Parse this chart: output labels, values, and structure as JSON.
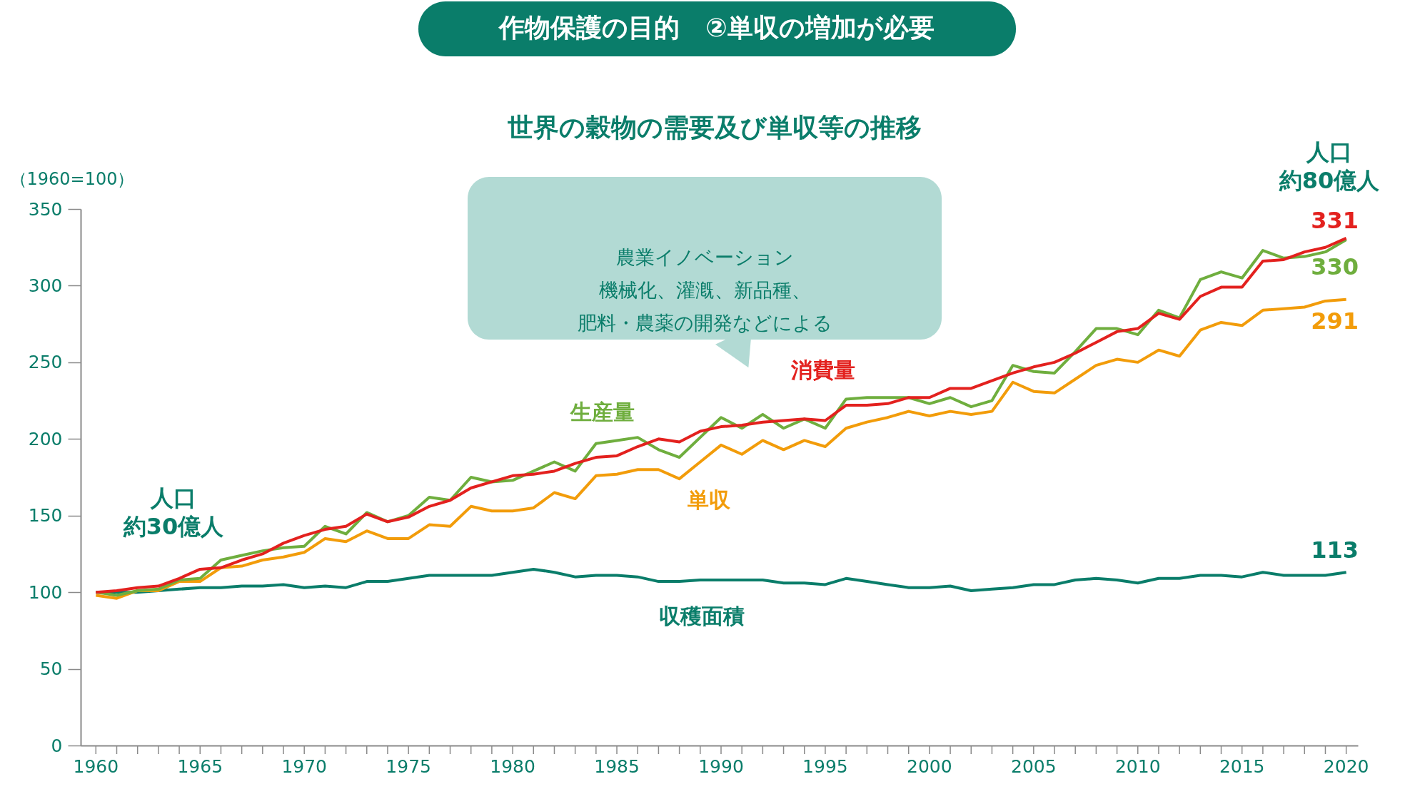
{
  "chart_data": {
    "type": "line",
    "title": "作物保護の目的　②単収の増加が必要",
    "subtitle": "世界の穀物の需要及び単収等の推移",
    "ylabel": "（1960=100）",
    "annotations": [
      "人口約30億人",
      "人口約80億人",
      "農業イノベーション機械化、灌漑、新品種、肥料・農薬の開発などによる"
    ],
    "x": [
      1960,
      1961,
      1962,
      1963,
      1964,
      1965,
      1966,
      1967,
      1968,
      1969,
      1970,
      1971,
      1972,
      1973,
      1974,
      1975,
      1976,
      1977,
      1978,
      1979,
      1980,
      1981,
      1982,
      1983,
      1984,
      1985,
      1986,
      1987,
      1988,
      1989,
      1990,
      1991,
      1992,
      1993,
      1994,
      1995,
      1996,
      1997,
      1998,
      1999,
      2000,
      2001,
      2002,
      2003,
      2004,
      2005,
      2006,
      2007,
      2008,
      2009,
      2010,
      2011,
      2012,
      2013,
      2014,
      2015,
      2016,
      2017,
      2018,
      2019,
      2020
    ],
    "series": [
      {
        "name": "収穫面積",
        "color": "#0a7d6a",
        "values": [
          100,
          100,
          100,
          101,
          102,
          103,
          103,
          104,
          104,
          105,
          103,
          104,
          103,
          107,
          107,
          109,
          111,
          111,
          111,
          111,
          113,
          115,
          113,
          110,
          111,
          111,
          110,
          107,
          107,
          108,
          108,
          108,
          108,
          106,
          106,
          105,
          109,
          107,
          105,
          103,
          103,
          104,
          101,
          102,
          103,
          105,
          105,
          108,
          109,
          108,
          106,
          109,
          109,
          111,
          111,
          110,
          113,
          111,
          111,
          111,
          113
        ],
        "value_labels": [
          null,
          null,
          null,
          null,
          null,
          null,
          null,
          null,
          null,
          null,
          null,
          null,
          null,
          null,
          null,
          null,
          null,
          null,
          null,
          null,
          null,
          null,
          null,
          null,
          null,
          null,
          null,
          null,
          null,
          null,
          null,
          null,
          null,
          null,
          null,
          null,
          null,
          null,
          null,
          null,
          null,
          null,
          null,
          null,
          null,
          null,
          null,
          null,
          null,
          null,
          null,
          null,
          null,
          null,
          null,
          null,
          null,
          null,
          null,
          null,
          "113"
        ]
      },
      {
        "name": "単収",
        "color": "#f29c0a",
        "values": [
          98,
          96,
          101,
          101,
          107,
          107,
          116,
          117,
          121,
          123,
          126,
          135,
          133,
          140,
          135,
          135,
          144,
          143,
          156,
          153,
          153,
          155,
          165,
          161,
          176,
          177,
          180,
          180,
          174,
          185,
          196,
          190,
          199,
          193,
          199,
          195,
          207,
          211,
          214,
          218,
          215,
          218,
          216,
          218,
          237,
          231,
          230,
          239,
          248,
          252,
          250,
          258,
          254,
          271,
          276,
          274,
          284,
          285,
          286,
          290,
          291
        ],
        "value_labels": [
          null,
          null,
          null,
          null,
          null,
          null,
          null,
          null,
          null,
          null,
          null,
          null,
          null,
          null,
          null,
          null,
          null,
          null,
          null,
          null,
          null,
          null,
          null,
          null,
          null,
          null,
          null,
          null,
          null,
          null,
          null,
          null,
          null,
          null,
          null,
          null,
          null,
          null,
          null,
          null,
          null,
          null,
          null,
          null,
          null,
          null,
          null,
          null,
          null,
          null,
          null,
          null,
          null,
          null,
          null,
          null,
          null,
          null,
          null,
          null,
          "291"
        ]
      },
      {
        "name": "生産量",
        "color": "#6fae3e",
        "values": [
          100,
          98,
          101,
          102,
          108,
          109,
          121,
          124,
          127,
          129,
          130,
          143,
          138,
          152,
          146,
          150,
          162,
          160,
          175,
          172,
          173,
          179,
          185,
          179,
          197,
          199,
          201,
          193,
          188,
          201,
          214,
          207,
          216,
          207,
          213,
          207,
          226,
          227,
          227,
          227,
          223,
          227,
          221,
          225,
          248,
          244,
          243,
          257,
          272,
          272,
          268,
          284,
          279,
          304,
          309,
          305,
          323,
          318,
          319,
          322,
          330
        ],
        "value_labels": [
          null,
          null,
          null,
          null,
          null,
          null,
          null,
          null,
          null,
          null,
          null,
          null,
          null,
          null,
          null,
          null,
          null,
          null,
          null,
          null,
          null,
          null,
          null,
          null,
          null,
          null,
          null,
          null,
          null,
          null,
          null,
          null,
          null,
          null,
          null,
          null,
          null,
          null,
          null,
          null,
          null,
          null,
          null,
          null,
          null,
          null,
          null,
          null,
          null,
          null,
          null,
          null,
          null,
          null,
          null,
          null,
          null,
          null,
          null,
          null,
          "330"
        ]
      },
      {
        "name": "消費量",
        "color": "#e3211e",
        "values": [
          100,
          101,
          103,
          104,
          109,
          115,
          116,
          121,
          125,
          132,
          137,
          141,
          143,
          151,
          146,
          149,
          156,
          160,
          168,
          172,
          176,
          177,
          179,
          184,
          188,
          189,
          195,
          200,
          198,
          205,
          208,
          209,
          211,
          212,
          213,
          212,
          222,
          222,
          223,
          227,
          227,
          233,
          233,
          238,
          243,
          247,
          250,
          256,
          263,
          270,
          272,
          282,
          278,
          293,
          299,
          299,
          316,
          317,
          322,
          325,
          331
        ],
        "value_labels": [
          null,
          null,
          null,
          null,
          null,
          null,
          null,
          null,
          null,
          null,
          null,
          null,
          null,
          null,
          null,
          null,
          null,
          null,
          null,
          null,
          null,
          null,
          null,
          null,
          null,
          null,
          null,
          null,
          null,
          null,
          null,
          null,
          null,
          null,
          null,
          null,
          null,
          null,
          null,
          null,
          null,
          null,
          null,
          null,
          null,
          null,
          null,
          null,
          null,
          null,
          null,
          null,
          null,
          null,
          null,
          null,
          null,
          null,
          null,
          null,
          "331"
        ]
      }
    ],
    "xlim": [
      1959.27,
      2020.56
    ],
    "xticks": [
      1960,
      {
        "value": 1961,
        "label": null
      },
      {
        "value": 1962,
        "label": null
      },
      {
        "value": 1963,
        "label": null
      },
      {
        "value": 1964,
        "label": null
      },
      1965,
      {
        "value": 1966,
        "label": null
      },
      {
        "value": 1967,
        "label": null
      },
      {
        "value": 1968,
        "label": null
      },
      {
        "value": 1969,
        "label": null
      },
      1970,
      {
        "value": 1971,
        "label": null
      },
      {
        "value": 1972,
        "label": null
      },
      {
        "value": 1973,
        "label": null
      },
      {
        "value": 1974,
        "label": null
      },
      1975,
      {
        "value": 1976,
        "label": null
      },
      {
        "value": 1977,
        "label": null
      },
      {
        "value": 1978,
        "label": null
      },
      {
        "value": 1979,
        "label": null
      },
      1980,
      {
        "value": 1981,
        "label": null
      },
      {
        "value": 1982,
        "label": null
      },
      {
        "value": 1983,
        "label": null
      },
      {
        "value": 1984,
        "label": null
      },
      1985,
      {
        "value": 1986,
        "label": null
      },
      {
        "value": 1987,
        "label": null
      },
      {
        "value": 1988,
        "label": null
      },
      {
        "value": 1989,
        "label": null
      },
      1990,
      {
        "value": 1991,
        "label": null
      },
      {
        "value": 1992,
        "label": null
      },
      {
        "value": 1993,
        "label": null
      },
      {
        "value": 1994,
        "label": null
      },
      1995,
      {
        "value": 1996,
        "label": null
      },
      {
        "value": 1997,
        "label": null
      },
      {
        "value": 1998,
        "label": null
      },
      {
        "value": 1999,
        "label": null
      },
      2000,
      {
        "value": 2001,
        "label": null
      },
      {
        "value": 2002,
        "label": null
      },
      {
        "value": 2003,
        "label": null
      },
      {
        "value": 2004,
        "label": null
      },
      2005,
      {
        "value": 2006,
        "label": null
      },
      {
        "value": 2007,
        "label": null
      },
      {
        "value": 2008,
        "label": null
      },
      {
        "value": 2009,
        "label": null
      },
      2010,
      {
        "value": 2011,
        "label": null
      },
      {
        "value": 2012,
        "label": null
      },
      {
        "value": 2013,
        "label": null
      },
      {
        "value": 2014,
        "label": null
      },
      2015,
      {
        "value": 2016,
        "label": null
      },
      {
        "value": 2017,
        "label": null
      },
      {
        "value": 2018,
        "label": null
      },
      {
        "value": 2019,
        "label": null
      },
      2020
    ],
    "ylim": [
      0,
      350
    ],
    "yticks": [
      0,
      50,
      100,
      150,
      200,
      250,
      300,
      350
    ],
    "grid": false
  }
}
